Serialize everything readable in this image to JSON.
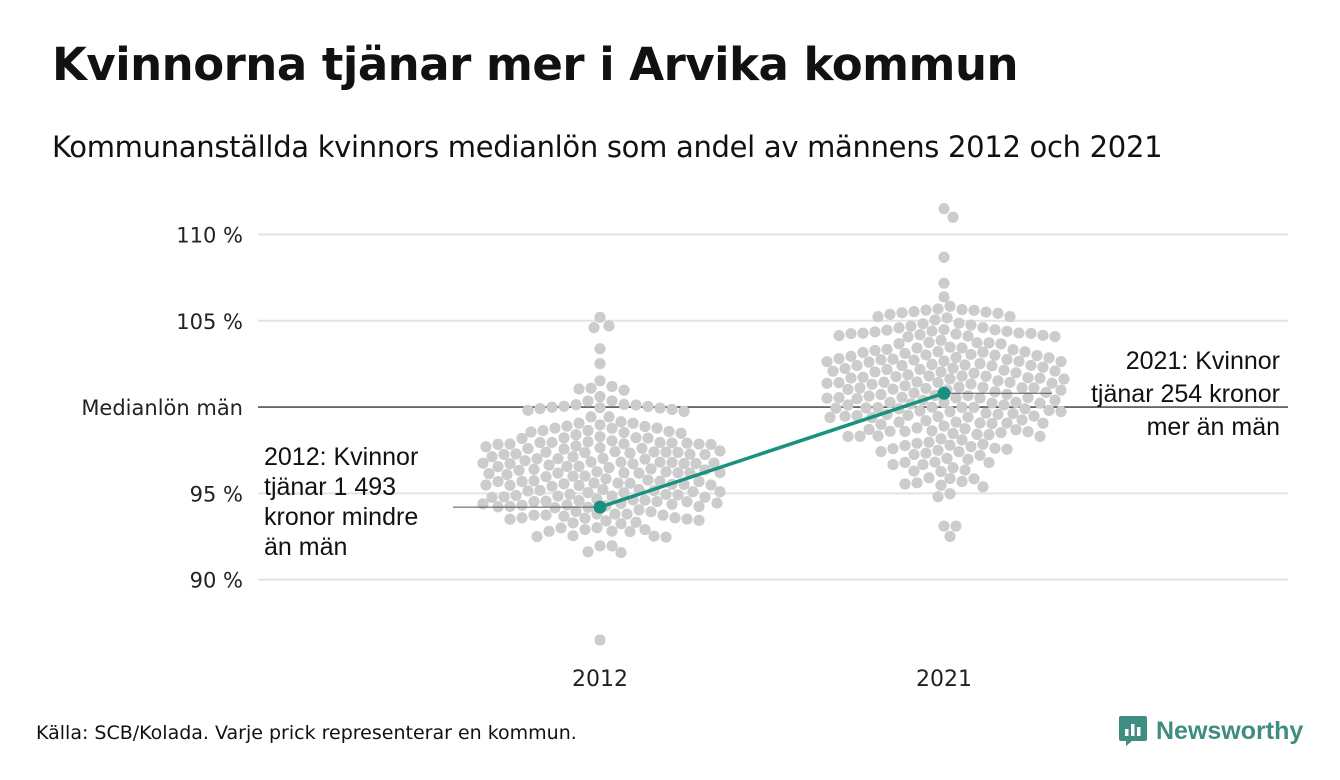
{
  "title": "Kvinnorna tjänar mer i Arvika kommun",
  "subtitle": "Kommunanställda kvinnors medianlön som andel av männens 2012 och 2021",
  "source": "Källa: SCB/Kolada. Varje prick representerar en kommun.",
  "logo": {
    "text": "Newsworthy",
    "icon": "newsworthy-logo-icon"
  },
  "colors": {
    "dots": "#cccccc",
    "highlight": "#1a9080",
    "grid": "#e3e3e3",
    "reference": "#333333"
  },
  "chart_data": {
    "type": "scatter",
    "subtype": "beeswarm",
    "categories": [
      "2012",
      "2021"
    ],
    "y_ticks": [
      {
        "value": 90,
        "label": "90 %"
      },
      {
        "value": 95,
        "label": "95 %"
      },
      {
        "value": 100,
        "label": "Medianlön män"
      },
      {
        "value": 105,
        "label": "105 %"
      },
      {
        "value": 110,
        "label": "110 %"
      }
    ],
    "ylim": [
      86.5,
      112
    ],
    "reference_line": {
      "value": 100,
      "label": "Medianlön män"
    },
    "highlight": {
      "name": "Arvika",
      "values": [
        {
          "x": "2012",
          "y": 94.2
        },
        {
          "x": "2021",
          "y": 100.8
        }
      ]
    },
    "distributions": [
      {
        "x": "2012",
        "center": 96.1,
        "spread": 2.2,
        "min": 86.5,
        "max": 105.2,
        "count": 290
      },
      {
        "x": "2021",
        "center": 101.3,
        "spread": 2.4,
        "min": 92.5,
        "max": 111.5,
        "count": 290
      }
    ],
    "annotations": [
      {
        "x": "2012",
        "lines": [
          "2012: Kvinnor",
          "tjänar 1 493",
          "kronor mindre",
          "än män"
        ]
      },
      {
        "x": "2021",
        "lines": [
          "2021: Kvinnor",
          "tjänar 254 kronor",
          "mer än män"
        ]
      }
    ]
  }
}
